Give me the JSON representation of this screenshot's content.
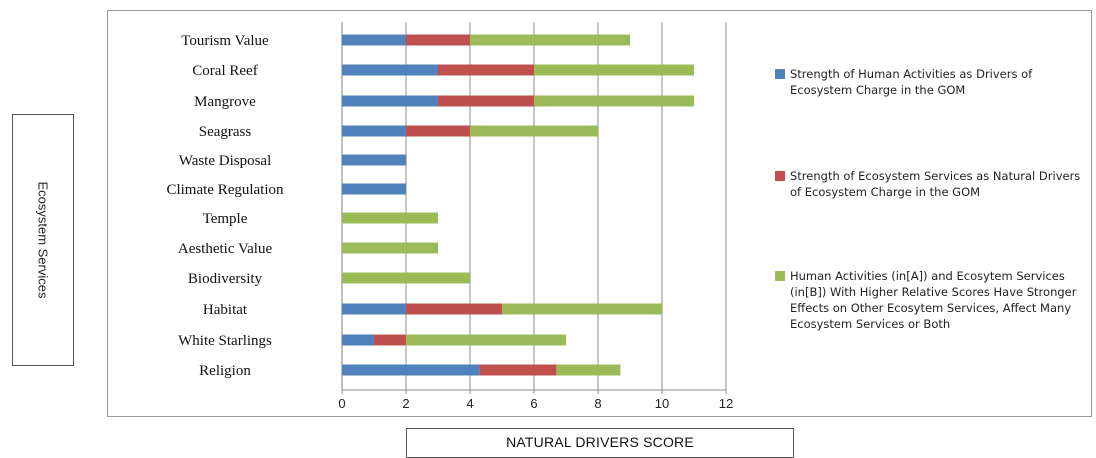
{
  "chart_data": {
    "type": "bar",
    "orientation": "horizontal",
    "stacked": true,
    "categories": [
      "Tourism Value",
      "Coral Reef",
      "Mangrove",
      "Seagrass",
      "Waste Disposal",
      "Climate Regulation",
      "Temple",
      "Aesthetic Value",
      "Biodiversity",
      "Habitat",
      "White Starlings",
      "Religion"
    ],
    "series": [
      {
        "name": "Strength of Human Activities as Drivers of Ecosystem Charge in the GOM",
        "color": "#4f81bd",
        "values": [
          2,
          3,
          3,
          2,
          2,
          2,
          0,
          0,
          0,
          2,
          1,
          4.3
        ]
      },
      {
        "name": "Strength of Ecosystem Services as Natural Drivers of Ecosystem Charge in the GOM",
        "color": "#c0504d",
        "values": [
          2,
          3,
          3,
          2,
          0,
          0,
          0,
          0,
          0,
          3,
          1,
          2.4
        ]
      },
      {
        "name": "Human Activities  (in[A]) and Ecosytem Services (in[B]) With Higher Relative Scores Have Stronger Effects on Other Ecosytem Services, Affect Many Ecosystem Services or Both",
        "color": "#9bbb59",
        "values": [
          5,
          5,
          5,
          4,
          0,
          0,
          3,
          3,
          4,
          5,
          5,
          2
        ]
      }
    ],
    "xlim": [
      0,
      12
    ],
    "xticks": [
      "0",
      "2",
      "4",
      "6",
      "8",
      "10",
      "12"
    ],
    "xlabel": "NATURAL DRIVERS SCORE",
    "ylabel": "Ecosystem Services",
    "grid": "vertical",
    "legend": "right"
  }
}
